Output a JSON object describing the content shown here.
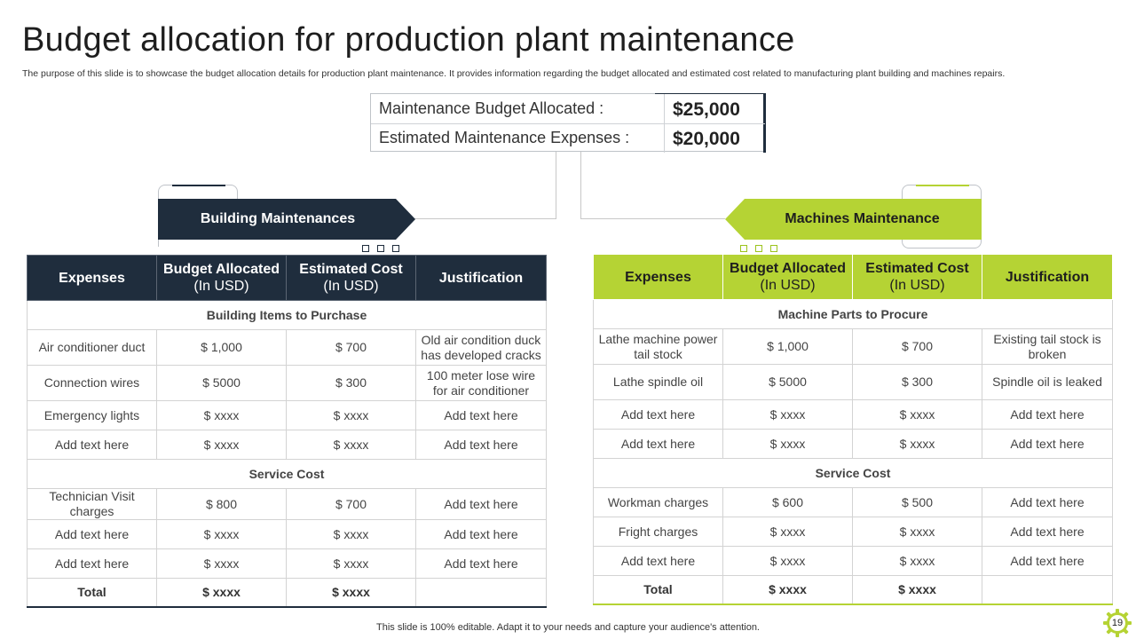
{
  "title": "Budget allocation for production plant maintenance",
  "subtitle": "The purpose of this slide is to showcase the budget allocation details for production plant maintenance. It provides information regarding the budget allocated and estimated cost related to manufacturing plant building and machines repairs.",
  "summary": {
    "budget_label": "Maintenance Budget Allocated :",
    "budget_value": "$25,000",
    "expenses_label": "Estimated Maintenance Expenses :",
    "expenses_value": "$20,000"
  },
  "colors": {
    "navy": "#1f2d3d",
    "lime": "#b5d334"
  },
  "building": {
    "banner": "Building Maintenances",
    "headers": {
      "expenses": "Expenses",
      "budget": "Budget Allocated",
      "budget_unit": "(In USD)",
      "estimated": "Estimated Cost",
      "estimated_unit": "(In USD)",
      "justification": "Justification"
    },
    "section1": "Building Items to Purchase",
    "items": [
      [
        "Air conditioner duct",
        "$ 1,000",
        "$ 700",
        "Old air condition duck has developed cracks"
      ],
      [
        "Connection wires",
        "$ 5000",
        "$ 300",
        "100 meter lose wire for air conditioner"
      ],
      [
        "Emergency lights",
        "$ xxxx",
        "$ xxxx",
        "Add text here"
      ],
      [
        "Add text here",
        "$ xxxx",
        "$ xxxx",
        "Add text here"
      ]
    ],
    "section2": "Service Cost",
    "services": [
      [
        "Technician Visit charges",
        "$ 800",
        "$ 700",
        "Add text here"
      ],
      [
        "Add text here",
        "$ xxxx",
        "$ xxxx",
        "Add text here"
      ],
      [
        "Add text here",
        "$ xxxx",
        "$ xxxx",
        "Add text here"
      ]
    ],
    "total": [
      "Total",
      "$ xxxx",
      "$ xxxx",
      ""
    ]
  },
  "machines": {
    "banner": "Machines Maintenance",
    "headers": {
      "expenses": "Expenses",
      "budget": "Budget Allocated",
      "budget_unit": "(In USD)",
      "estimated": "Estimated Cost",
      "estimated_unit": "(In USD)",
      "justification": "Justification"
    },
    "section1": "Machine Parts to Procure",
    "items": [
      [
        "Lathe machine power tail stock",
        "$ 1,000",
        "$ 700",
        "Existing tail stock is broken"
      ],
      [
        "Lathe spindle oil",
        "$ 5000",
        "$ 300",
        "Spindle oil is leaked"
      ],
      [
        "Add text here",
        "$ xxxx",
        "$ xxxx",
        "Add text here"
      ],
      [
        "Add text here",
        "$ xxxx",
        "$ xxxx",
        "Add text here"
      ]
    ],
    "section2": "Service Cost",
    "services": [
      [
        "Workman charges",
        "$ 600",
        "$ 500",
        "Add text here"
      ],
      [
        "Fright charges",
        "$ xxxx",
        "$ xxxx",
        "Add text here"
      ],
      [
        "Add text here",
        "$ xxxx",
        "$ xxxx",
        "Add text here"
      ]
    ],
    "total": [
      "Total",
      "$ xxxx",
      "$ xxxx",
      ""
    ]
  },
  "footer": "This slide is 100% editable. Adapt it to your needs and capture your audience's attention.",
  "page_number": "19"
}
